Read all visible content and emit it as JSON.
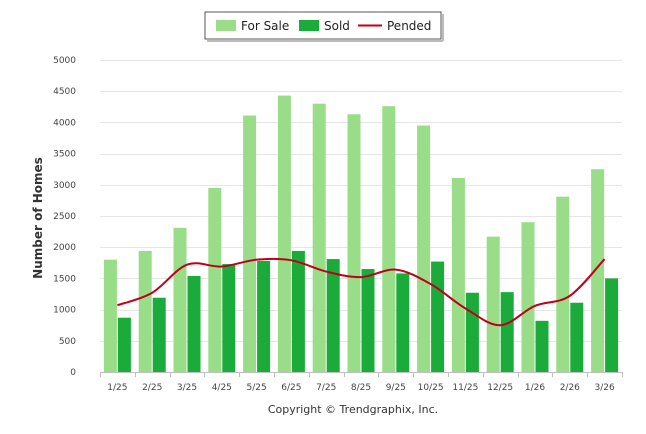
{
  "chart_data": {
    "type": "bar",
    "categories": [
      "1/25",
      "2/25",
      "3/25",
      "4/25",
      "5/25",
      "6/25",
      "7/25",
      "8/25",
      "9/25",
      "10/25",
      "11/25",
      "12/25",
      "1/26",
      "2/26",
      "3/26"
    ],
    "series": [
      {
        "name": "For Sale",
        "type": "bar",
        "color": "#99dd88",
        "values": [
          1800,
          1940,
          2310,
          2950,
          4110,
          4430,
          4300,
          4130,
          4260,
          3950,
          3110,
          2170,
          2400,
          2810,
          3250
        ]
      },
      {
        "name": "Sold",
        "type": "bar",
        "color": "#1aab3a",
        "values": [
          870,
          1190,
          1540,
          1730,
          1780,
          1940,
          1810,
          1650,
          1580,
          1770,
          1270,
          1280,
          820,
          1110,
          1500
        ]
      },
      {
        "name": "Pended",
        "type": "line",
        "color": "#c0001a",
        "values": [
          1070,
          1270,
          1720,
          1690,
          1800,
          1790,
          1610,
          1520,
          1640,
          1410,
          1020,
          750,
          1060,
          1220,
          1810
        ]
      }
    ],
    "ylabel": "Number of Homes",
    "xlabel": "",
    "ylim": [
      0,
      5000
    ],
    "yticks": [
      0,
      500,
      1000,
      1500,
      2000,
      2500,
      3000,
      3500,
      4000,
      4500,
      5000
    ],
    "grid": true,
    "legend": "top-center",
    "footer": "Copyright © Trendgraphix, Inc."
  }
}
